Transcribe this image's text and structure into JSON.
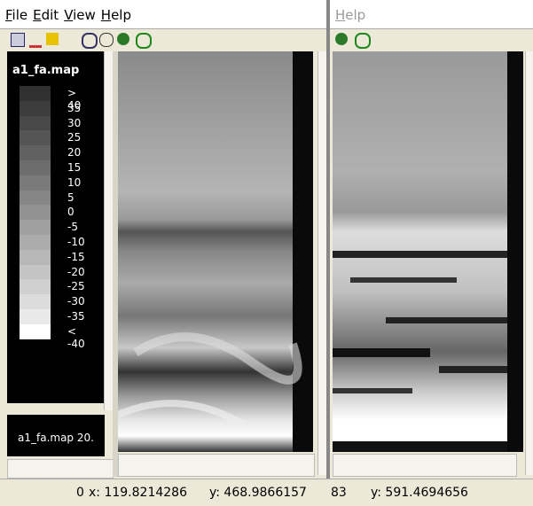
{
  "menu": [
    "File",
    "Edit",
    "View",
    "Help"
  ],
  "right_menu": [
    "Help"
  ],
  "legend": {
    "title": "a1_fa.map",
    "labels": [
      "> 40",
      "35",
      "30",
      "25",
      "20",
      "15",
      "10",
      "5",
      "0",
      "-5",
      "-10",
      "-15",
      "-20",
      "-25",
      "-30",
      "-35",
      "< -40"
    ],
    "colors": [
      "#303030",
      "#3c3c3c",
      "#484848",
      "#555555",
      "#616161",
      "#6d6d6d",
      "#7a7a7a",
      "#868686",
      "#929292",
      "#9f9f9f",
      "#ababab",
      "#b7b7b7",
      "#c4c4c4",
      "#d0d0d0",
      "#dcdcdc",
      "#e9e9e9",
      "#ffffff"
    ]
  },
  "lower_panel": {
    "text": "a1_fa.map 20."
  },
  "status": {
    "left_count": "0",
    "x": "x: 119.8214286",
    "y": "y: 468.9866157",
    "right_count": "83",
    "right_y": "y: 591.4694656"
  }
}
